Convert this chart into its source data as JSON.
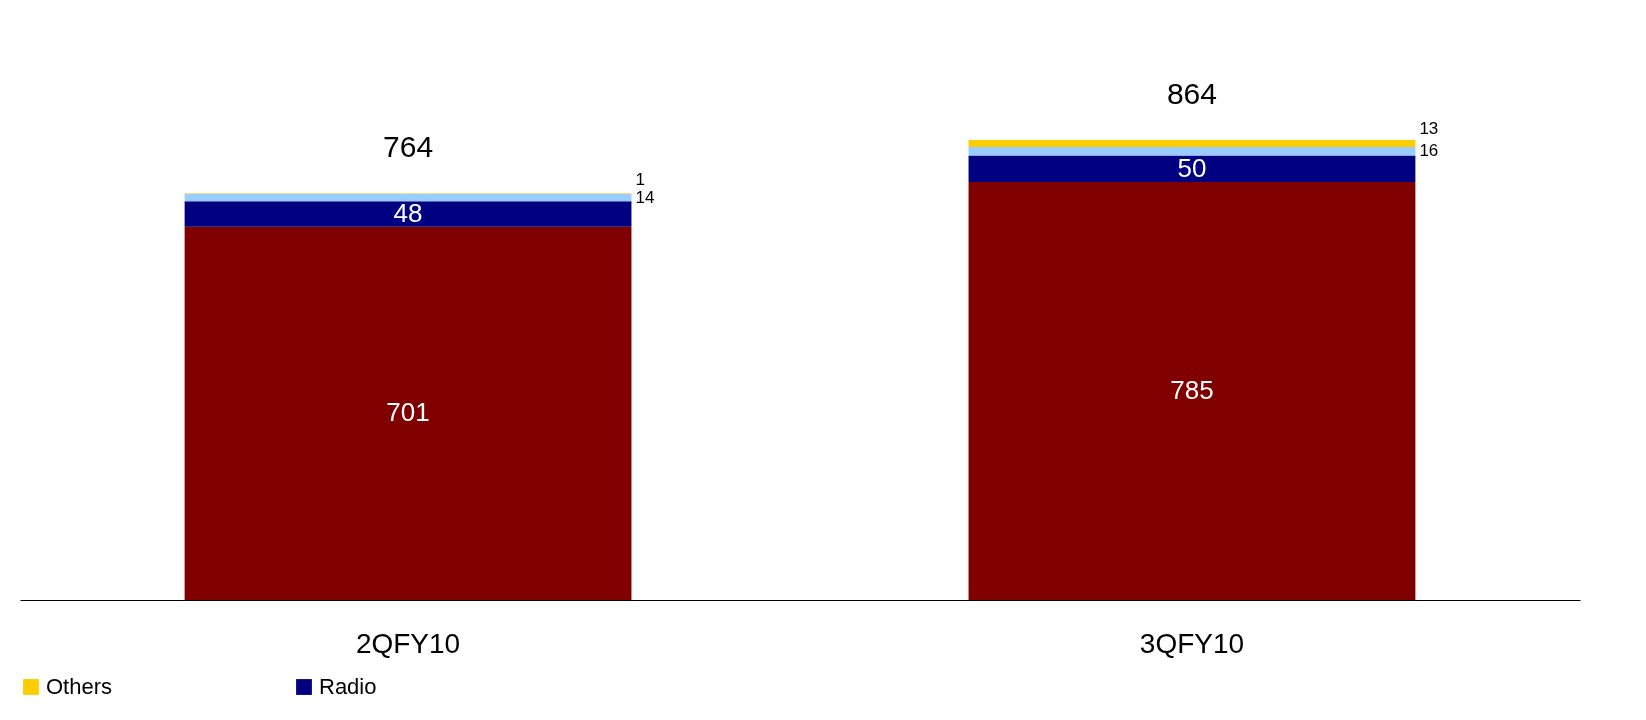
{
  "chart_data": {
    "type": "bar",
    "stacked": true,
    "categories": [
      "2QFY10",
      "3QFY10"
    ],
    "series": [
      {
        "color": "#800000",
        "values": [
          701,
          785
        ]
      },
      {
        "name": "Radio",
        "color": "#000080",
        "values": [
          48,
          50
        ]
      },
      {
        "color": "#99ccff",
        "values": [
          14,
          16
        ]
      },
      {
        "name": "Others",
        "color": "#ffcc00",
        "values": [
          1,
          13
        ]
      }
    ],
    "data_labels": true,
    "totals": [
      "764",
      "864"
    ],
    "legend": "bottom",
    "grid": false
  }
}
